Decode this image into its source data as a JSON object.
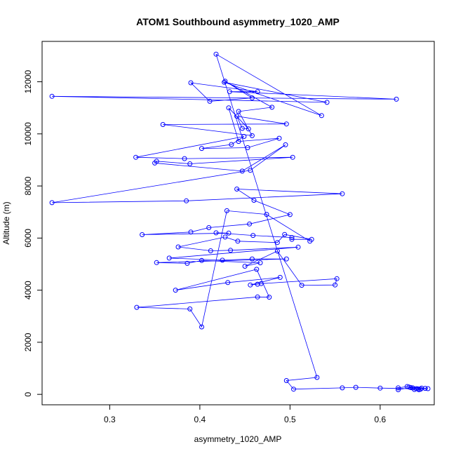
{
  "chart_data": {
    "type": "scatter",
    "title": "ATOM1 Southbound asymmetry_1020_AMP",
    "xlabel": "asymmetry_1020_AMP",
    "ylabel": "Altitude (m)",
    "xlim": [
      0.225,
      0.66
    ],
    "ylim": [
      -400,
      13550
    ],
    "xticks": [
      "0.3",
      "0.4",
      "0.5",
      "0.6"
    ],
    "yticks": [
      "0",
      "2000",
      "4000",
      "6000",
      "8000",
      "10000",
      "12000"
    ],
    "grid": false,
    "legend": "none",
    "series_color": "#0000ff",
    "marker": "open-circle",
    "line": true,
    "series": [
      {
        "values": [
          {
            "x": 0.645,
            "y": 200
          },
          {
            "x": 0.643,
            "y": 180
          },
          {
            "x": 0.64,
            "y": 220
          },
          {
            "x": 0.636,
            "y": 250
          },
          {
            "x": 0.632,
            "y": 280
          },
          {
            "x": 0.646,
            "y": 240
          },
          {
            "x": 0.65,
            "y": 230
          },
          {
            "x": 0.638,
            "y": 190
          },
          {
            "x": 0.634,
            "y": 260
          },
          {
            "x": 0.62,
            "y": 180
          },
          {
            "x": 0.62,
            "y": 250
          },
          {
            "x": 0.63,
            "y": 300
          },
          {
            "x": 0.653,
            "y": 220
          },
          {
            "x": 0.642,
            "y": 210
          },
          {
            "x": 0.6,
            "y": 240
          },
          {
            "x": 0.573,
            "y": 270
          },
          {
            "x": 0.558,
            "y": 250
          },
          {
            "x": 0.504,
            "y": 200
          },
          {
            "x": 0.496,
            "y": 530
          },
          {
            "x": 0.53,
            "y": 650
          },
          {
            "x": 0.418,
            "y": 13060
          },
          {
            "x": 0.535,
            "y": 10700
          },
          {
            "x": 0.427,
            "y": 11980
          },
          {
            "x": 0.541,
            "y": 11210
          },
          {
            "x": 0.236,
            "y": 11440
          },
          {
            "x": 0.618,
            "y": 11330
          },
          {
            "x": 0.433,
            "y": 11620
          },
          {
            "x": 0.464,
            "y": 11620
          },
          {
            "x": 0.39,
            "y": 11960
          },
          {
            "x": 0.411,
            "y": 11250
          },
          {
            "x": 0.458,
            "y": 11380
          },
          {
            "x": 0.428,
            "y": 12020
          },
          {
            "x": 0.48,
            "y": 11020
          },
          {
            "x": 0.443,
            "y": 10860
          },
          {
            "x": 0.458,
            "y": 9930
          },
          {
            "x": 0.359,
            "y": 10360
          },
          {
            "x": 0.496,
            "y": 10380
          },
          {
            "x": 0.441,
            "y": 10680
          },
          {
            "x": 0.447,
            "y": 10210
          },
          {
            "x": 0.454,
            "y": 10190
          },
          {
            "x": 0.432,
            "y": 11000
          },
          {
            "x": 0.443,
            "y": 9710
          },
          {
            "x": 0.488,
            "y": 9830
          },
          {
            "x": 0.453,
            "y": 9470
          },
          {
            "x": 0.402,
            "y": 9440
          },
          {
            "x": 0.435,
            "y": 9590
          },
          {
            "x": 0.449,
            "y": 9900
          },
          {
            "x": 0.329,
            "y": 9100
          },
          {
            "x": 0.383,
            "y": 9050
          },
          {
            "x": 0.503,
            "y": 9100
          },
          {
            "x": 0.389,
            "y": 8850
          },
          {
            "x": 0.352,
            "y": 8950
          },
          {
            "x": 0.35,
            "y": 8880
          },
          {
            "x": 0.447,
            "y": 8570
          },
          {
            "x": 0.495,
            "y": 9580
          },
          {
            "x": 0.456,
            "y": 8600
          },
          {
            "x": 0.236,
            "y": 7360
          },
          {
            "x": 0.385,
            "y": 7430
          },
          {
            "x": 0.558,
            "y": 7700
          },
          {
            "x": 0.441,
            "y": 7880
          },
          {
            "x": 0.46,
            "y": 7450
          },
          {
            "x": 0.5,
            "y": 6900
          },
          {
            "x": 0.455,
            "y": 6540
          },
          {
            "x": 0.41,
            "y": 6400
          },
          {
            "x": 0.39,
            "y": 6230
          },
          {
            "x": 0.336,
            "y": 6130
          },
          {
            "x": 0.432,
            "y": 6190
          },
          {
            "x": 0.418,
            "y": 6200
          },
          {
            "x": 0.459,
            "y": 6100
          },
          {
            "x": 0.502,
            "y": 6020
          },
          {
            "x": 0.502,
            "y": 5950
          },
          {
            "x": 0.524,
            "y": 5950
          },
          {
            "x": 0.494,
            "y": 6140
          },
          {
            "x": 0.486,
            "y": 5830
          },
          {
            "x": 0.442,
            "y": 5880
          },
          {
            "x": 0.428,
            "y": 6040
          },
          {
            "x": 0.376,
            "y": 5660
          },
          {
            "x": 0.412,
            "y": 5510
          },
          {
            "x": 0.434,
            "y": 5530
          },
          {
            "x": 0.509,
            "y": 5650
          },
          {
            "x": 0.366,
            "y": 5230
          },
          {
            "x": 0.425,
            "y": 5150
          },
          {
            "x": 0.458,
            "y": 5200
          },
          {
            "x": 0.496,
            "y": 5200
          },
          {
            "x": 0.352,
            "y": 5060
          },
          {
            "x": 0.386,
            "y": 5030
          },
          {
            "x": 0.402,
            "y": 5140
          },
          {
            "x": 0.467,
            "y": 5050
          },
          {
            "x": 0.45,
            "y": 4920
          },
          {
            "x": 0.486,
            "y": 5500
          },
          {
            "x": 0.513,
            "y": 4190
          },
          {
            "x": 0.55,
            "y": 4200
          },
          {
            "x": 0.552,
            "y": 4440
          },
          {
            "x": 0.468,
            "y": 4250
          },
          {
            "x": 0.464,
            "y": 4230
          },
          {
            "x": 0.456,
            "y": 4200
          },
          {
            "x": 0.489,
            "y": 4490
          },
          {
            "x": 0.431,
            "y": 4290
          },
          {
            "x": 0.373,
            "y": 4000
          },
          {
            "x": 0.463,
            "y": 4800
          },
          {
            "x": 0.477,
            "y": 3730
          },
          {
            "x": 0.464,
            "y": 3740
          },
          {
            "x": 0.33,
            "y": 3340
          },
          {
            "x": 0.389,
            "y": 3280
          },
          {
            "x": 0.402,
            "y": 2590
          },
          {
            "x": 0.43,
            "y": 7050
          },
          {
            "x": 0.474,
            "y": 6910
          },
          {
            "x": 0.522,
            "y": 5880
          }
        ]
      }
    ]
  }
}
